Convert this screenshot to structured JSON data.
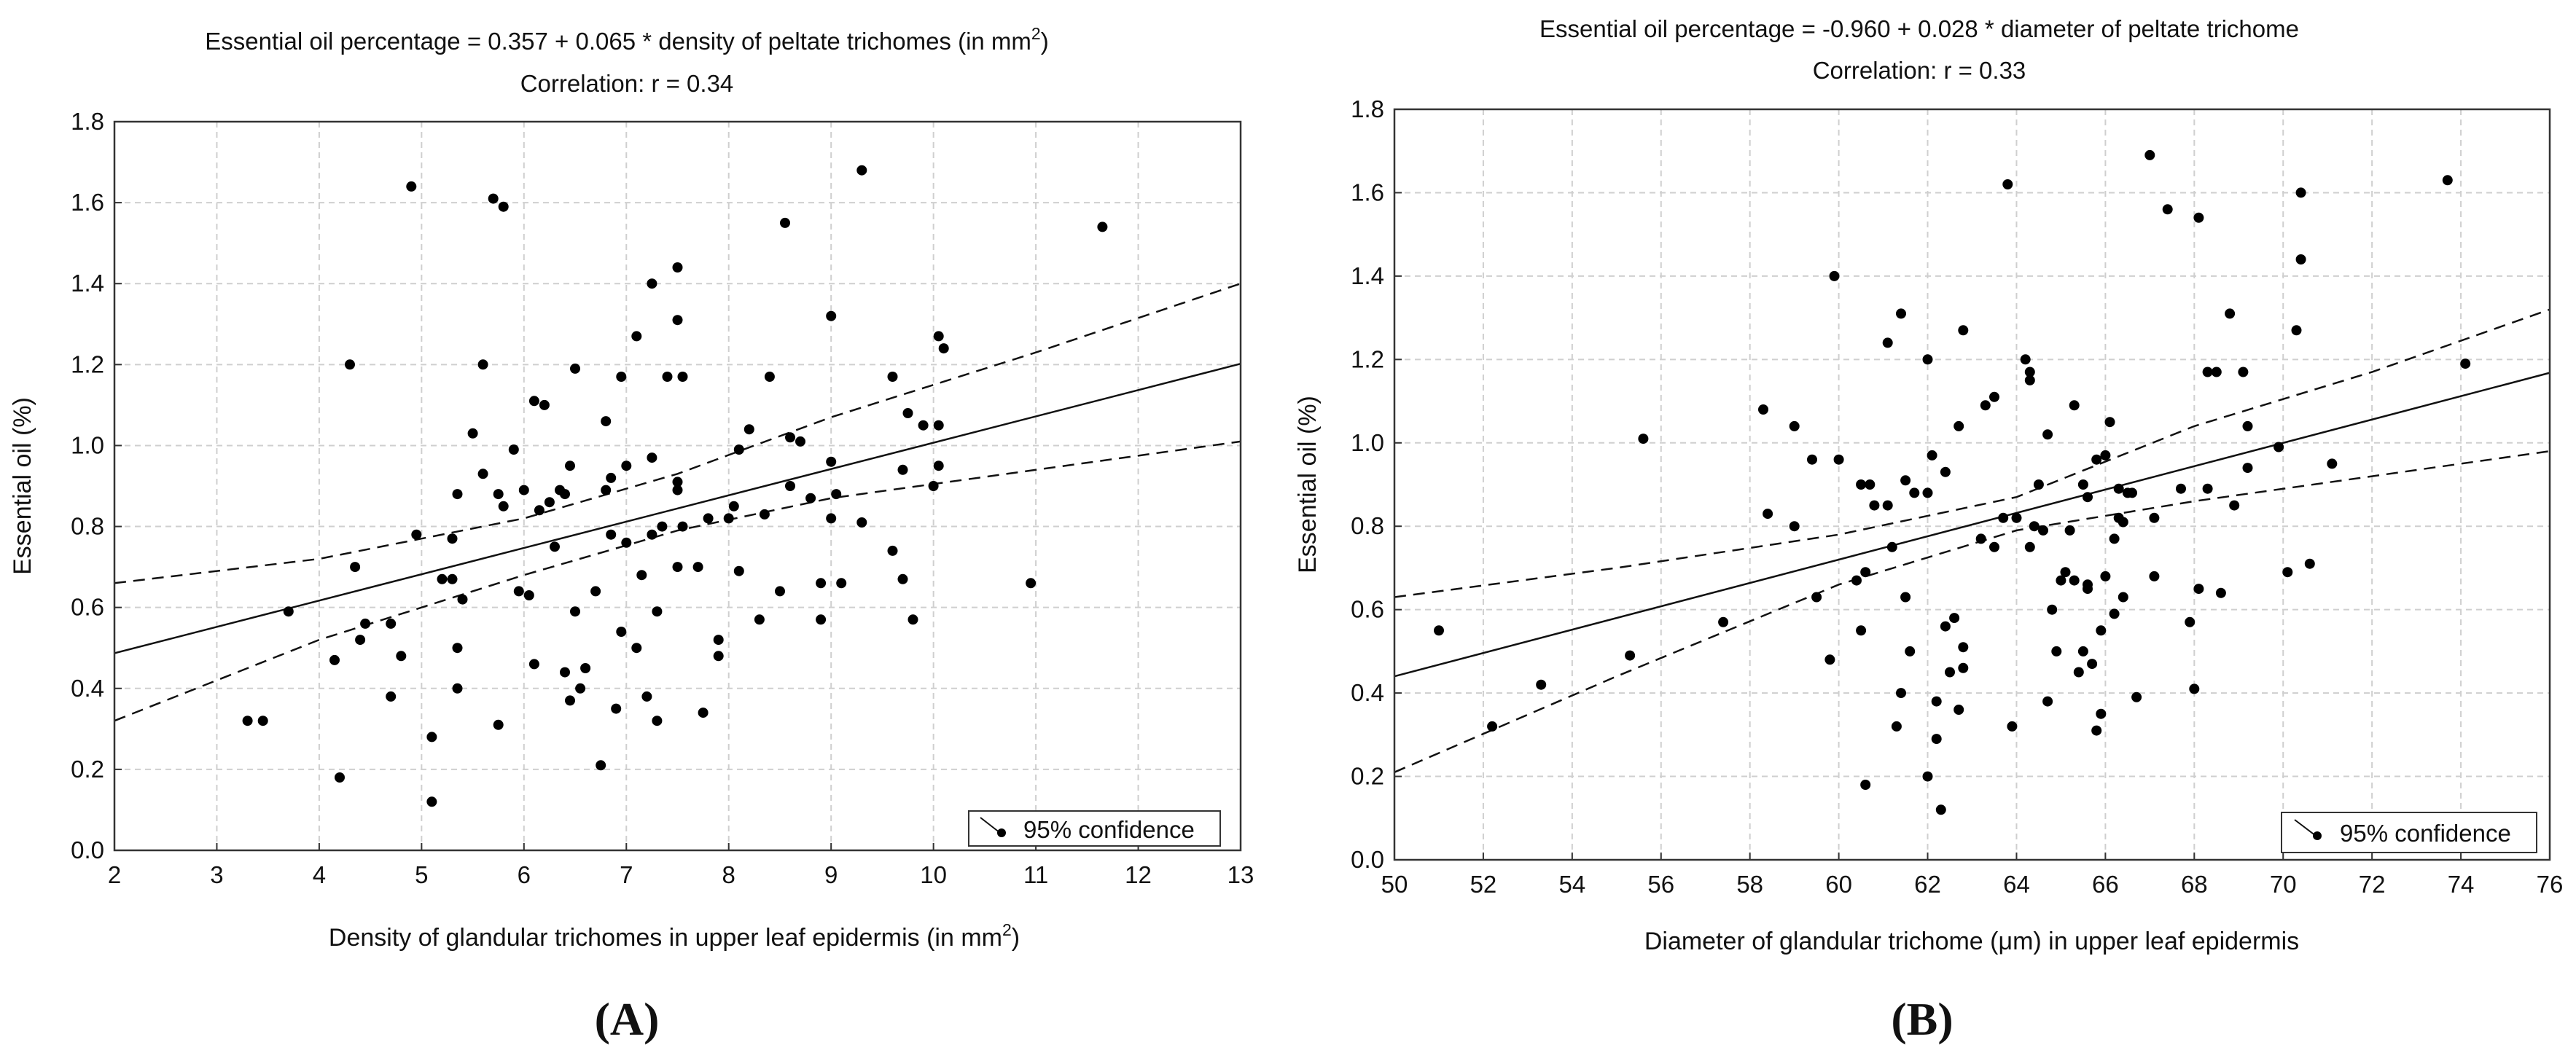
{
  "panels": [
    {
      "id": "A",
      "panel_label": "(A)",
      "title_line1_prefix": "Essential oil percentage = 0.357 + 0.065 * density of peltate trichomes (in mm",
      "title_line1_sup": "2",
      "title_line1_suffix": ")",
      "title_line2": "Correlation: r = 0.34",
      "xlabel_prefix": "Density of glandular trichomes in upper leaf epidermis (in mm",
      "xlabel_sup": "2",
      "xlabel_suffix": ")",
      "ylabel": "Essential oil (%)",
      "legend_label": "95% confidence"
    },
    {
      "id": "B",
      "panel_label": "(B)",
      "title_line1_prefix": "Essential oil percentage = -0.960 + 0.028 * diameter of peltate trichome",
      "title_line1_sup": "",
      "title_line1_suffix": "",
      "title_line2": "Correlation: r = 0.33",
      "xlabel_prefix": "Diameter of glandular trichome (μm)  in upper leaf epidermis",
      "xlabel_sup": "",
      "xlabel_suffix": "",
      "ylabel": "Essential oil (%)",
      "legend_label": "95% confidence"
    }
  ],
  "chart_data": [
    {
      "type": "scatter",
      "title": "Essential oil percentage = 0.357 + 0.065 * density of peltate trichomes (in mm2)",
      "subtitle": "Correlation: r = 0.34",
      "xlabel": "Density of glandular trichomes in upper leaf epidermis (in mm2)",
      "ylabel": "Essential oil (%)",
      "xlim": [
        2,
        13
      ],
      "ylim": [
        0,
        1.8
      ],
      "xticks": [
        2,
        3,
        4,
        5,
        6,
        7,
        8,
        9,
        10,
        11,
        12,
        13
      ],
      "yticks": [
        0.0,
        0.2,
        0.4,
        0.6,
        0.8,
        1.0,
        1.2,
        1.4,
        1.6,
        1.8
      ],
      "grid": true,
      "legend": "bottom-right",
      "fit": {
        "intercept": 0.357,
        "slope": 0.065
      },
      "confidence_band": {
        "upper": [
          [
            2,
            0.66
          ],
          [
            4,
            0.72
          ],
          [
            6,
            0.82
          ],
          [
            7.5,
            0.93
          ],
          [
            9,
            1.07
          ],
          [
            11,
            1.23
          ],
          [
            13,
            1.4
          ]
        ],
        "lower": [
          [
            2,
            0.32
          ],
          [
            4,
            0.52
          ],
          [
            6,
            0.68
          ],
          [
            7.5,
            0.79
          ],
          [
            9,
            0.87
          ],
          [
            11,
            0.94
          ],
          [
            13,
            1.01
          ]
        ]
      },
      "points": [
        [
          3.3,
          0.32
        ],
        [
          3.45,
          0.32
        ],
        [
          3.7,
          0.59
        ],
        [
          4.15,
          0.47
        ],
        [
          4.2,
          0.18
        ],
        [
          4.3,
          1.2
        ],
        [
          4.35,
          0.7
        ],
        [
          4.4,
          0.52
        ],
        [
          4.45,
          0.56
        ],
        [
          4.7,
          0.38
        ],
        [
          4.7,
          0.56
        ],
        [
          4.8,
          0.48
        ],
        [
          4.9,
          1.64
        ],
        [
          4.95,
          0.78
        ],
        [
          5.1,
          0.12
        ],
        [
          5.1,
          0.28
        ],
        [
          5.2,
          0.67
        ],
        [
          5.3,
          0.67
        ],
        [
          5.3,
          0.77
        ],
        [
          5.35,
          0.4
        ],
        [
          5.35,
          0.5
        ],
        [
          5.35,
          0.88
        ],
        [
          5.4,
          0.62
        ],
        [
          5.5,
          1.03
        ],
        [
          5.6,
          1.2
        ],
        [
          5.6,
          0.93
        ],
        [
          5.7,
          1.61
        ],
        [
          5.75,
          0.88
        ],
        [
          5.75,
          0.31
        ],
        [
          5.8,
          1.59
        ],
        [
          5.8,
          0.85
        ],
        [
          5.9,
          0.99
        ],
        [
          5.95,
          0.64
        ],
        [
          6.0,
          0.89
        ],
        [
          6.05,
          0.63
        ],
        [
          6.1,
          0.46
        ],
        [
          6.1,
          1.11
        ],
        [
          6.15,
          0.84
        ],
        [
          6.2,
          1.1
        ],
        [
          6.25,
          0.86
        ],
        [
          6.3,
          0.75
        ],
        [
          6.35,
          0.89
        ],
        [
          6.4,
          0.44
        ],
        [
          6.4,
          0.88
        ],
        [
          6.45,
          0.95
        ],
        [
          6.45,
          0.37
        ],
        [
          6.5,
          1.19
        ],
        [
          6.5,
          0.59
        ],
        [
          6.55,
          0.4
        ],
        [
          6.6,
          0.45
        ],
        [
          6.7,
          0.64
        ],
        [
          6.8,
          1.06
        ],
        [
          6.75,
          0.21
        ],
        [
          6.8,
          0.89
        ],
        [
          6.85,
          0.92
        ],
        [
          6.85,
          0.78
        ],
        [
          6.9,
          0.35
        ],
        [
          6.95,
          1.17
        ],
        [
          6.95,
          0.54
        ],
        [
          7.0,
          0.76
        ],
        [
          7.0,
          0.95
        ],
        [
          7.1,
          0.5
        ],
        [
          7.1,
          1.27
        ],
        [
          7.15,
          0.68
        ],
        [
          7.2,
          0.38
        ],
        [
          7.25,
          0.78
        ],
        [
          7.25,
          0.97
        ],
        [
          7.25,
          1.4
        ],
        [
          7.3,
          0.59
        ],
        [
          7.3,
          0.32
        ],
        [
          7.35,
          0.8
        ],
        [
          7.4,
          1.17
        ],
        [
          7.5,
          0.89
        ],
        [
          7.5,
          0.91
        ],
        [
          7.5,
          1.31
        ],
        [
          7.5,
          1.44
        ],
        [
          7.5,
          0.7
        ],
        [
          7.55,
          0.8
        ],
        [
          7.55,
          1.17
        ],
        [
          7.7,
          0.7
        ],
        [
          7.75,
          0.34
        ],
        [
          7.8,
          0.82
        ],
        [
          7.9,
          0.52
        ],
        [
          7.9,
          0.48
        ],
        [
          8.0,
          0.82
        ],
        [
          8.05,
          0.85
        ],
        [
          8.1,
          0.99
        ],
        [
          8.1,
          0.69
        ],
        [
          8.2,
          1.04
        ],
        [
          8.3,
          0.57
        ],
        [
          8.35,
          0.83
        ],
        [
          8.4,
          1.17
        ],
        [
          8.5,
          0.64
        ],
        [
          8.55,
          1.55
        ],
        [
          8.6,
          0.9
        ],
        [
          8.6,
          1.02
        ],
        [
          8.7,
          1.01
        ],
        [
          8.8,
          0.87
        ],
        [
          8.9,
          0.57
        ],
        [
          8.9,
          0.66
        ],
        [
          9.0,
          0.82
        ],
        [
          9.0,
          0.96
        ],
        [
          9.0,
          1.32
        ],
        [
          9.05,
          0.88
        ],
        [
          9.1,
          0.66
        ],
        [
          9.3,
          0.81
        ],
        [
          9.3,
          1.68
        ],
        [
          9.6,
          0.74
        ],
        [
          9.6,
          1.17
        ],
        [
          9.7,
          0.94
        ],
        [
          9.7,
          0.67
        ],
        [
          9.75,
          1.08
        ],
        [
          9.8,
          0.57
        ],
        [
          9.9,
          1.05
        ],
        [
          10.0,
          0.9
        ],
        [
          10.05,
          1.27
        ],
        [
          10.05,
          1.05
        ],
        [
          10.05,
          0.95
        ],
        [
          10.1,
          1.24
        ],
        [
          10.95,
          0.66
        ],
        [
          11.65,
          1.54
        ]
      ]
    },
    {
      "type": "scatter",
      "title": "Essential oil percentage = -0.960 + 0.028 * diameter of peltate trichome",
      "subtitle": "Correlation: r = 0.33",
      "xlabel": "Diameter of glandular trichome (μm)  in upper leaf epidermis",
      "ylabel": "Essential oil (%)",
      "xlim": [
        50,
        76
      ],
      "ylim": [
        0,
        1.8
      ],
      "xticks": [
        50,
        52,
        54,
        56,
        58,
        60,
        62,
        64,
        66,
        68,
        70,
        72,
        74,
        76
      ],
      "yticks": [
        0.0,
        0.2,
        0.4,
        0.6,
        0.8,
        1.0,
        1.2,
        1.4,
        1.6,
        1.8
      ],
      "grid": true,
      "legend": "bottom-right",
      "fit": {
        "intercept": -0.96,
        "slope": 0.028
      },
      "confidence_band": {
        "upper": [
          [
            50,
            0.63
          ],
          [
            55,
            0.7
          ],
          [
            60,
            0.78
          ],
          [
            64,
            0.87
          ],
          [
            68,
            1.04
          ],
          [
            72,
            1.17
          ],
          [
            76,
            1.32
          ]
        ],
        "lower": [
          [
            50,
            0.21
          ],
          [
            55,
            0.44
          ],
          [
            60,
            0.66
          ],
          [
            64,
            0.79
          ],
          [
            68,
            0.86
          ],
          [
            72,
            0.92
          ],
          [
            76,
            0.98
          ]
        ]
      },
      "points": [
        [
          51.0,
          0.55
        ],
        [
          52.2,
          0.32
        ],
        [
          53.3,
          0.42
        ],
        [
          55.3,
          0.49
        ],
        [
          55.6,
          1.01
        ],
        [
          57.4,
          0.57
        ],
        [
          58.3,
          1.08
        ],
        [
          58.4,
          0.83
        ],
        [
          59.0,
          0.8
        ],
        [
          59.0,
          1.04
        ],
        [
          59.4,
          0.96
        ],
        [
          59.5,
          0.63
        ],
        [
          59.8,
          0.48
        ],
        [
          59.9,
          1.4
        ],
        [
          60.0,
          0.96
        ],
        [
          60.4,
          0.67
        ],
        [
          60.5,
          0.9
        ],
        [
          60.5,
          0.55
        ],
        [
          60.6,
          0.69
        ],
        [
          60.6,
          0.18
        ],
        [
          60.7,
          0.9
        ],
        [
          60.8,
          0.85
        ],
        [
          61.1,
          0.85
        ],
        [
          61.1,
          1.24
        ],
        [
          61.2,
          0.75
        ],
        [
          61.3,
          0.32
        ],
        [
          61.4,
          1.31
        ],
        [
          61.4,
          0.4
        ],
        [
          61.5,
          0.63
        ],
        [
          61.5,
          0.91
        ],
        [
          61.6,
          0.5
        ],
        [
          61.7,
          0.88
        ],
        [
          62.0,
          0.2
        ],
        [
          62.0,
          0.88
        ],
        [
          62.0,
          1.2
        ],
        [
          62.1,
          0.97
        ],
        [
          62.2,
          0.38
        ],
        [
          62.2,
          0.29
        ],
        [
          62.3,
          0.12
        ],
        [
          62.4,
          0.56
        ],
        [
          62.4,
          0.93
        ],
        [
          62.5,
          0.45
        ],
        [
          62.6,
          0.58
        ],
        [
          62.7,
          0.36
        ],
        [
          62.7,
          1.04
        ],
        [
          62.8,
          0.51
        ],
        [
          62.8,
          0.46
        ],
        [
          62.8,
          1.27
        ],
        [
          63.2,
          0.77
        ],
        [
          63.3,
          1.09
        ],
        [
          63.5,
          1.11
        ],
        [
          63.5,
          0.75
        ],
        [
          63.7,
          0.82
        ],
        [
          63.8,
          1.62
        ],
        [
          63.9,
          0.32
        ],
        [
          64.0,
          0.82
        ],
        [
          64.2,
          1.2
        ],
        [
          64.3,
          1.17
        ],
        [
          64.3,
          0.75
        ],
        [
          64.3,
          1.15
        ],
        [
          64.4,
          0.8
        ],
        [
          64.5,
          0.9
        ],
        [
          64.6,
          0.79
        ],
        [
          64.7,
          1.02
        ],
        [
          64.7,
          0.38
        ],
        [
          64.8,
          0.6
        ],
        [
          64.9,
          0.5
        ],
        [
          65.0,
          0.67
        ],
        [
          65.1,
          0.69
        ],
        [
          65.2,
          0.79
        ],
        [
          65.3,
          0.67
        ],
        [
          65.3,
          1.09
        ],
        [
          65.4,
          0.45
        ],
        [
          65.5,
          0.5
        ],
        [
          65.5,
          0.9
        ],
        [
          65.6,
          0.66
        ],
        [
          65.6,
          0.65
        ],
        [
          65.6,
          0.87
        ],
        [
          65.7,
          0.47
        ],
        [
          65.8,
          0.96
        ],
        [
          65.8,
          0.31
        ],
        [
          65.9,
          0.35
        ],
        [
          65.9,
          0.55
        ],
        [
          66.0,
          0.97
        ],
        [
          66.0,
          0.68
        ],
        [
          66.1,
          1.05
        ],
        [
          66.2,
          0.77
        ],
        [
          66.2,
          0.59
        ],
        [
          66.3,
          0.82
        ],
        [
          66.3,
          0.89
        ],
        [
          66.4,
          0.81
        ],
        [
          66.4,
          0.63
        ],
        [
          66.5,
          0.88
        ],
        [
          66.6,
          0.88
        ],
        [
          66.7,
          0.39
        ],
        [
          67.0,
          1.69
        ],
        [
          67.1,
          0.68
        ],
        [
          67.1,
          0.82
        ],
        [
          67.4,
          1.56
        ],
        [
          67.7,
          0.89
        ],
        [
          67.9,
          0.57
        ],
        [
          68.0,
          0.41
        ],
        [
          68.1,
          1.54
        ],
        [
          68.1,
          0.65
        ],
        [
          68.3,
          1.17
        ],
        [
          68.3,
          0.89
        ],
        [
          68.5,
          1.17
        ],
        [
          68.6,
          0.64
        ],
        [
          68.8,
          1.31
        ],
        [
          68.9,
          0.85
        ],
        [
          69.1,
          1.17
        ],
        [
          69.2,
          1.04
        ],
        [
          69.2,
          0.94
        ],
        [
          69.9,
          0.99
        ],
        [
          70.1,
          0.69
        ],
        [
          70.3,
          1.27
        ],
        [
          70.4,
          1.44
        ],
        [
          70.4,
          1.6
        ],
        [
          70.6,
          0.71
        ],
        [
          71.1,
          0.95
        ],
        [
          73.7,
          1.63
        ],
        [
          74.1,
          1.19
        ]
      ]
    }
  ]
}
